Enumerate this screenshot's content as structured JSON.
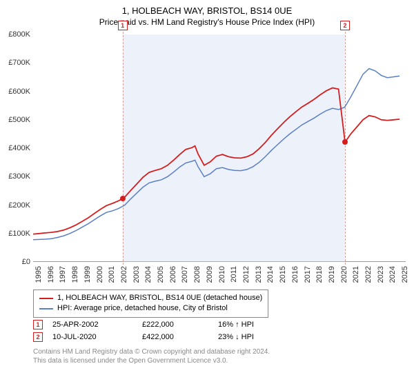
{
  "title": "1, HOLBEACH WAY, BRISTOL, BS14 0UE",
  "subtitle": "Price paid vs. HM Land Registry's House Price Index (HPI)",
  "chart": {
    "type": "line",
    "xrange": [
      1995,
      2025.5
    ],
    "yrange": [
      0,
      800
    ],
    "yticks": [
      0,
      100,
      200,
      300,
      400,
      500,
      600,
      700,
      800
    ],
    "ytick_labels": [
      "£0",
      "£100K",
      "£200K",
      "£300K",
      "£400K",
      "£500K",
      "£600K",
      "£700K",
      "£800K"
    ],
    "xticks": [
      1995,
      1996,
      1997,
      1998,
      1999,
      2000,
      2001,
      2002,
      2003,
      2004,
      2005,
      2006,
      2007,
      2008,
      2009,
      2010,
      2011,
      2012,
      2013,
      2014,
      2015,
      2016,
      2017,
      2018,
      2019,
      2020,
      2021,
      2022,
      2023,
      2024,
      2025
    ],
    "shade_from": 2002.32,
    "shade_to": 2020.53,
    "red_color": "#d51d1d",
    "blue_color": "#5b7fc5",
    "dash_color": "#d9a0a0",
    "grid_color": "#e0e0e0",
    "price_series": [
      [
        1995.0,
        98
      ],
      [
        1995.5,
        100
      ],
      [
        1996.0,
        102
      ],
      [
        1996.5,
        104
      ],
      [
        1997.0,
        107
      ],
      [
        1997.5,
        112
      ],
      [
        1998.0,
        120
      ],
      [
        1998.5,
        130
      ],
      [
        1999.0,
        142
      ],
      [
        1999.5,
        155
      ],
      [
        2000.0,
        170
      ],
      [
        2000.5,
        185
      ],
      [
        2001.0,
        198
      ],
      [
        2001.5,
        206
      ],
      [
        2002.0,
        215
      ],
      [
        2002.32,
        222
      ],
      [
        2002.5,
        228
      ],
      [
        2003.0,
        252
      ],
      [
        2003.5,
        275
      ],
      [
        2004.0,
        298
      ],
      [
        2004.5,
        315
      ],
      [
        2005.0,
        322
      ],
      [
        2005.5,
        328
      ],
      [
        2006.0,
        340
      ],
      [
        2006.5,
        358
      ],
      [
        2007.0,
        378
      ],
      [
        2007.5,
        396
      ],
      [
        2008.0,
        402
      ],
      [
        2008.25,
        408
      ],
      [
        2008.5,
        380
      ],
      [
        2009.0,
        340
      ],
      [
        2009.5,
        352
      ],
      [
        2010.0,
        372
      ],
      [
        2010.5,
        378
      ],
      [
        2011.0,
        370
      ],
      [
        2011.5,
        366
      ],
      [
        2012.0,
        365
      ],
      [
        2012.5,
        370
      ],
      [
        2013.0,
        380
      ],
      [
        2013.5,
        398
      ],
      [
        2014.0,
        420
      ],
      [
        2014.5,
        445
      ],
      [
        2015.0,
        468
      ],
      [
        2015.5,
        490
      ],
      [
        2016.0,
        510
      ],
      [
        2016.5,
        528
      ],
      [
        2017.0,
        545
      ],
      [
        2017.5,
        558
      ],
      [
        2018.0,
        572
      ],
      [
        2018.5,
        588
      ],
      [
        2019.0,
        602
      ],
      [
        2019.5,
        612
      ],
      [
        2020.0,
        608
      ],
      [
        2020.53,
        422
      ],
      [
        2020.54,
        422
      ],
      [
        2021.0,
        450
      ],
      [
        2021.5,
        475
      ],
      [
        2022.0,
        500
      ],
      [
        2022.5,
        515
      ],
      [
        2023.0,
        510
      ],
      [
        2023.5,
        500
      ],
      [
        2024.0,
        498
      ],
      [
        2024.5,
        500
      ],
      [
        2025.0,
        502
      ]
    ],
    "hpi_series": [
      [
        1995.0,
        78
      ],
      [
        1995.5,
        79
      ],
      [
        1996.0,
        80
      ],
      [
        1996.5,
        82
      ],
      [
        1997.0,
        86
      ],
      [
        1997.5,
        92
      ],
      [
        1998.0,
        100
      ],
      [
        1998.5,
        110
      ],
      [
        1999.0,
        122
      ],
      [
        1999.5,
        134
      ],
      [
        2000.0,
        148
      ],
      [
        2000.5,
        162
      ],
      [
        2001.0,
        174
      ],
      [
        2001.5,
        180
      ],
      [
        2002.0,
        188
      ],
      [
        2002.5,
        200
      ],
      [
        2003.0,
        222
      ],
      [
        2003.5,
        243
      ],
      [
        2004.0,
        263
      ],
      [
        2004.5,
        278
      ],
      [
        2005.0,
        284
      ],
      [
        2005.5,
        289
      ],
      [
        2006.0,
        300
      ],
      [
        2006.5,
        316
      ],
      [
        2007.0,
        334
      ],
      [
        2007.5,
        348
      ],
      [
        2008.0,
        354
      ],
      [
        2008.25,
        358
      ],
      [
        2008.5,
        335
      ],
      [
        2009.0,
        300
      ],
      [
        2009.5,
        310
      ],
      [
        2010.0,
        328
      ],
      [
        2010.5,
        332
      ],
      [
        2011.0,
        325
      ],
      [
        2011.5,
        322
      ],
      [
        2012.0,
        321
      ],
      [
        2012.5,
        325
      ],
      [
        2013.0,
        335
      ],
      [
        2013.5,
        350
      ],
      [
        2014.0,
        370
      ],
      [
        2014.5,
        392
      ],
      [
        2015.0,
        412
      ],
      [
        2015.5,
        432
      ],
      [
        2016.0,
        450
      ],
      [
        2016.5,
        466
      ],
      [
        2017.0,
        482
      ],
      [
        2017.5,
        494
      ],
      [
        2018.0,
        506
      ],
      [
        2018.5,
        520
      ],
      [
        2019.0,
        532
      ],
      [
        2019.5,
        540
      ],
      [
        2020.0,
        536
      ],
      [
        2020.5,
        544
      ],
      [
        2021.0,
        580
      ],
      [
        2021.5,
        620
      ],
      [
        2022.0,
        660
      ],
      [
        2022.5,
        680
      ],
      [
        2023.0,
        672
      ],
      [
        2023.5,
        656
      ],
      [
        2024.0,
        648
      ],
      [
        2024.5,
        651
      ],
      [
        2025.0,
        654
      ]
    ],
    "sale_markers": [
      {
        "idx": "1",
        "x": 2002.32,
        "y": 222
      },
      {
        "idx": "2",
        "x": 2020.53,
        "y": 422
      }
    ]
  },
  "legend": {
    "series1": "1, HOLBEACH WAY, BRISTOL, BS14 0UE (detached house)",
    "series2": "HPI: Average price, detached house, City of Bristol"
  },
  "sales": [
    {
      "idx": "1",
      "date": "25-APR-2002",
      "price": "£222,000",
      "diff": "16% ↑ HPI"
    },
    {
      "idx": "2",
      "date": "10-JUL-2020",
      "price": "£422,000",
      "diff": "23% ↓ HPI"
    }
  ],
  "footer1": "Contains HM Land Registry data © Crown copyright and database right 2024.",
  "footer2": "This data is licensed under the Open Government Licence v3.0."
}
